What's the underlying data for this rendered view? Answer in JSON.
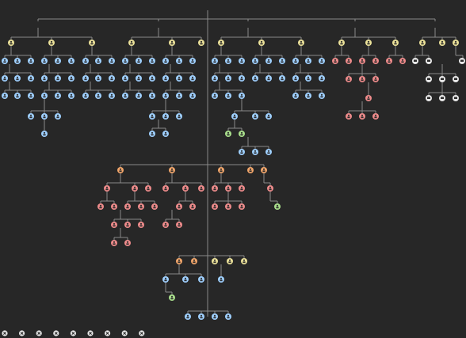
{
  "colors": {
    "background": "#272727",
    "edge": "#8a8a8a",
    "root": "#f2f2f2",
    "orange": "#f2a66b",
    "yellow": "#ece29a",
    "blue": "#9fd0ff",
    "red": "#ee8b8b",
    "green": "#a9df8c",
    "white": "#e8e8e8",
    "glyph": "#2b2b2b"
  },
  "icons": {
    "root": "person-icon",
    "orange": "person-icon",
    "yellow": "person-icon",
    "blue": "person-icon",
    "red": "person-icon",
    "green": "person-icon",
    "white": "device-icon",
    "bottom": "close-circle-icon"
  },
  "legend_note": "",
  "bottom_row_count": 9
}
